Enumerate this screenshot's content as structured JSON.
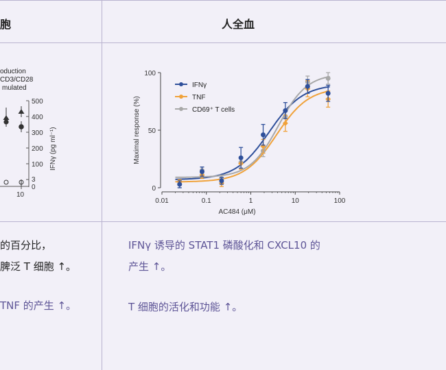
{
  "table": {
    "header_left_partial": "胞",
    "header_right": "人全血",
    "left_lines": [
      "的百分比，",
      "脾泛 T 细胞 ↑。",
      "TNF 的产生 ↑。"
    ],
    "right_lines": [
      "IFNγ 诱导的 STAT1 磷酸化和 CXCL10 的",
      "产生 ↑。",
      "T 细胞的活化和功能 ↑。"
    ]
  },
  "left_chart_partial": {
    "legend_lines": [
      "oduction",
      "CD3/CD28",
      "mulated"
    ],
    "y2_label": "IFNγ (pg ml⁻¹)",
    "y2_ticks": [
      "500",
      "400",
      "300",
      "200",
      "100",
      "3",
      "0"
    ],
    "x_tick": "10",
    "colors": {
      "axis": "#555555",
      "marker": "#333333"
    }
  },
  "chart_data": {
    "type": "line",
    "xlabel": "AC484 (μM)",
    "ylabel": "Maximal response (%)",
    "x_scale": "log",
    "xlim": [
      0.01,
      100
    ],
    "ylim": [
      0,
      100
    ],
    "x_ticks": [
      "0.01",
      "0.1",
      "1",
      "10",
      "100"
    ],
    "y_ticks": [
      "0",
      "50",
      "100"
    ],
    "grid": false,
    "legend_position": "top-left",
    "series": [
      {
        "name": "IFNγ",
        "color": "#2e4f9a",
        "marker": "circle",
        "x": [
          0.025,
          0.08,
          0.22,
          0.6,
          1.9,
          6,
          19,
          55
        ],
        "y": [
          3,
          14,
          6,
          26,
          46,
          67,
          88,
          82
        ],
        "err": [
          3,
          4,
          3,
          9,
          9,
          7,
          6,
          7
        ],
        "fit": {
          "bottom": 7,
          "top": 90,
          "ec50": 2.6,
          "hill": 1.15
        }
      },
      {
        "name": "TNF",
        "color": "#f0a23a",
        "marker": "diamond",
        "x": [
          0.025,
          0.08,
          0.22,
          0.6,
          1.9,
          6,
          19,
          55
        ],
        "y": [
          5,
          11,
          4,
          21,
          36,
          56,
          86,
          77
        ],
        "err": [
          2,
          3,
          3,
          5,
          6,
          7,
          7,
          7
        ],
        "fit": {
          "bottom": 5,
          "top": 87,
          "ec50": 3.8,
          "hill": 1.2
        }
      },
      {
        "name": "CD69⁺ T cells",
        "color": "#a8a8a8",
        "marker": "circle",
        "x": [
          0.025,
          0.08,
          0.22,
          0.6,
          1.9,
          6,
          19,
          55
        ],
        "y": [
          3,
          15,
          8,
          22,
          32,
          62,
          92,
          95
        ],
        "err": [
          3,
          3,
          3,
          5,
          5,
          6,
          5,
          5
        ],
        "fit": {
          "bottom": 9,
          "top": 99,
          "ec50": 4.2,
          "hill": 1.35
        }
      }
    ]
  }
}
